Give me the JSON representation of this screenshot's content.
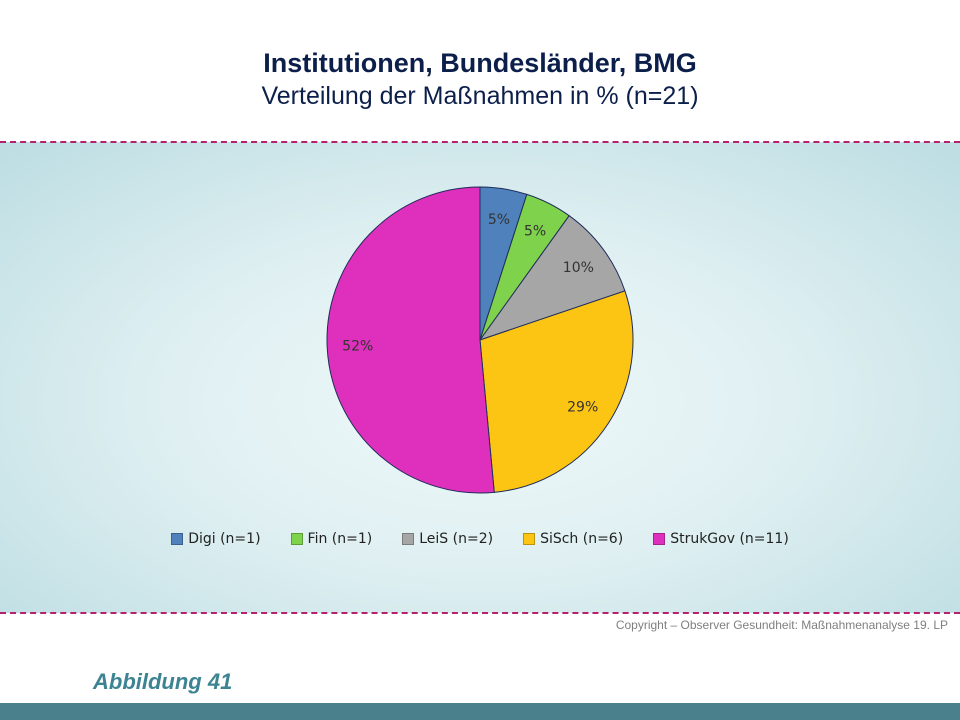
{
  "header": {
    "title": "Institutionen, Bundesländer, BMG",
    "subtitle": "Verteilung der Maßnahmen in % (n=21)"
  },
  "chart_data": {
    "type": "pie",
    "title": "Institutionen, Bundesländer, BMG",
    "subtitle": "Verteilung der Maßnahmen in % (n=21)",
    "legend_position": "bottom",
    "slices": [
      {
        "label": "Digi (n=1)",
        "value": 5,
        "display": "5%",
        "color": "#4f81bd"
      },
      {
        "label": "Fin (n=1)",
        "value": 5,
        "display": "5%",
        "color": "#7fd24b"
      },
      {
        "label": "LeiS (n=2)",
        "value": 10,
        "display": "10%",
        "color": "#a6a6a6"
      },
      {
        "label": "SiSch (n=6)",
        "value": 29,
        "display": "29%",
        "color": "#fcc413"
      },
      {
        "label": "StrukGov (n=11)",
        "value": 52,
        "display": "52%",
        "color": "#de30bd"
      }
    ]
  },
  "footer": {
    "copyright": "Copyright – Observer Gesundheit: Maßnahmenanalyse 19. LP",
    "figure_label": "Abbildung 41"
  }
}
